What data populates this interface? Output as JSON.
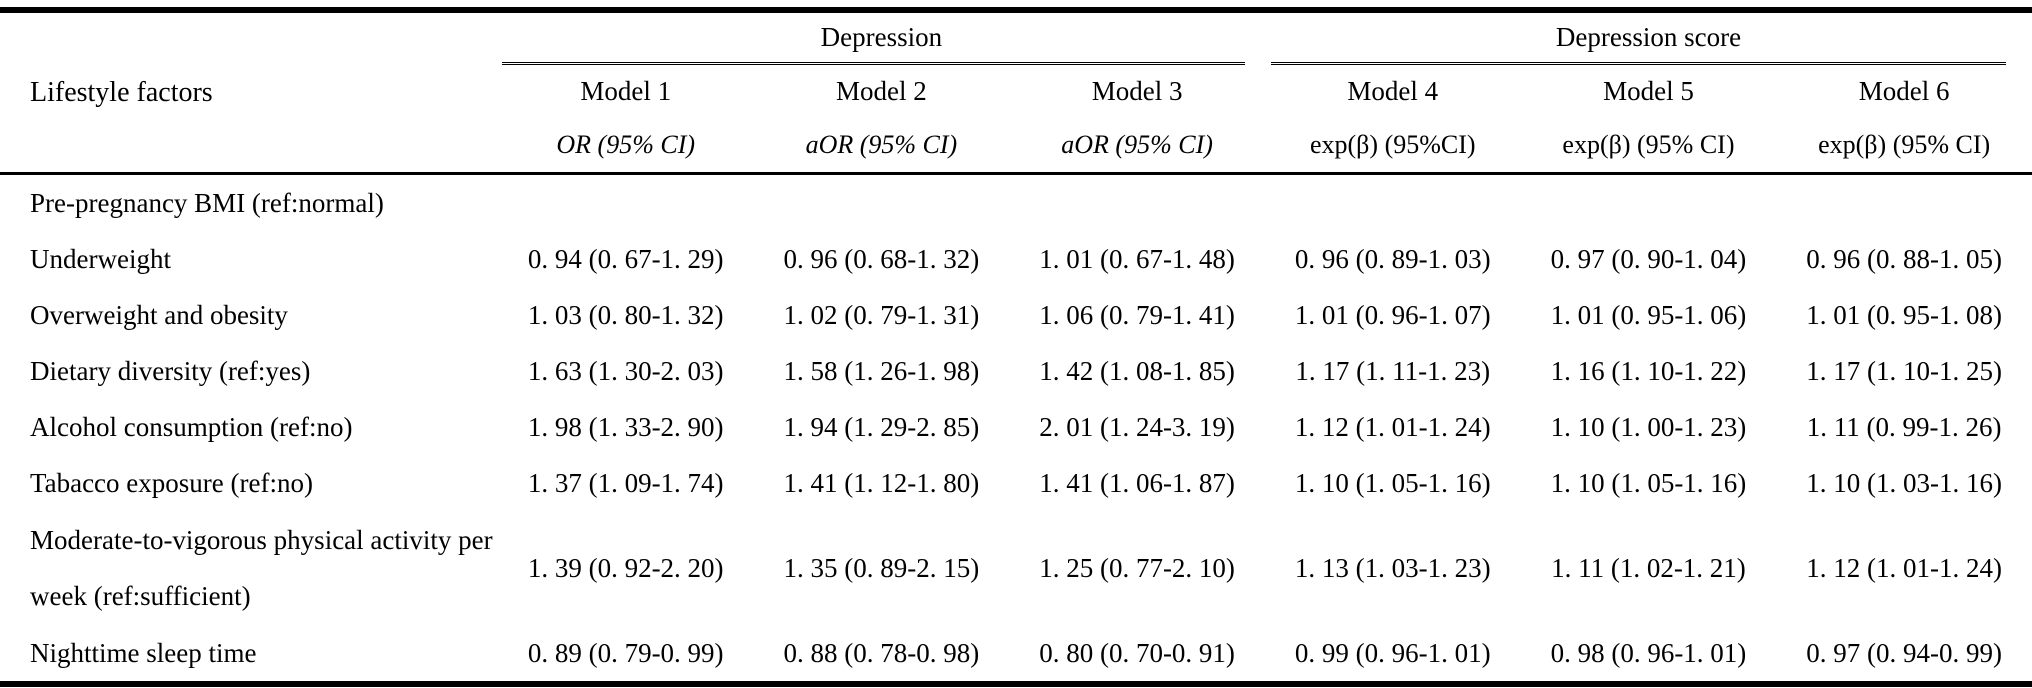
{
  "table": {
    "stub_header": "Lifestyle factors",
    "groups": {
      "depression": "Depression",
      "depression_score": "Depression score"
    },
    "models": [
      "Model 1",
      "Model 2",
      "Model 3",
      "Model 4",
      "Model 5",
      "Model 6"
    ],
    "measures": [
      "OR (95% CI)",
      "aOR (95% CI)",
      "aOR (95% CI)",
      "exp(β) (95%CI)",
      "exp(β) (95% CI)",
      "exp(β) (95% CI)"
    ],
    "rows": [
      {
        "label": "Pre-pregnancy BMI (ref:normal)",
        "values": [
          "",
          "",
          "",
          "",
          "",
          ""
        ]
      },
      {
        "label": "Underweight",
        "values": [
          "0. 94 (0. 67-1. 29)",
          "0. 96 (0. 68-1. 32)",
          "1. 01 (0. 67-1. 48)",
          "0. 96 (0. 89-1. 03)",
          "0. 97 (0. 90-1. 04)",
          "0. 96 (0. 88-1. 05)"
        ]
      },
      {
        "label": "Overweight and obesity",
        "values": [
          "1. 03 (0. 80-1. 32)",
          "1. 02 (0. 79-1. 31)",
          "1. 06 (0. 79-1. 41)",
          "1. 01 (0. 96-1. 07)",
          "1. 01 (0. 95-1. 06)",
          "1. 01 (0. 95-1. 08)"
        ]
      },
      {
        "label": "Dietary diversity (ref:yes)",
        "values": [
          "1. 63 (1. 30-2. 03)",
          "1. 58 (1. 26-1. 98)",
          "1. 42 (1. 08-1. 85)",
          "1. 17 (1. 11-1. 23)",
          "1. 16 (1. 10-1. 22)",
          "1. 17 (1. 10-1. 25)"
        ]
      },
      {
        "label": "Alcohol consumption (ref:no)",
        "values": [
          "1. 98 (1. 33-2. 90)",
          "1. 94 (1. 29-2. 85)",
          "2. 01 (1. 24-3. 19)",
          "1. 12 (1. 01-1. 24)",
          "1. 10 (1. 00-1. 23)",
          "1. 11 (0. 99-1. 26)"
        ]
      },
      {
        "label": "Tabacco exposure (ref:no)",
        "values": [
          "1. 37 (1. 09-1. 74)",
          "1. 41 (1. 12-1. 80)",
          "1. 41 (1. 06-1. 87)",
          "1. 10 (1. 05-1. 16)",
          "1. 10 (1. 05-1. 16)",
          "1. 10 (1. 03-1. 16)"
        ]
      },
      {
        "label": "Moderate-to-vigorous physical activity per week (ref:sufficient)",
        "values": [
          "1. 39 (0. 92-2. 20)",
          "1. 35 (0. 89-2. 15)",
          "1. 25 (0. 77-2. 10)",
          "1. 13 (1. 03-1. 23)",
          "1. 11 (1. 02-1. 21)",
          "1. 12 (1. 01-1. 24)"
        ]
      },
      {
        "label": "Nighttime sleep time",
        "values": [
          "0. 89 (0. 79-0. 99)",
          "0. 88 (0. 78-0. 98)",
          "0. 80 (0. 70-0. 91)",
          "0. 99 (0. 96-1. 01)",
          "0. 98 (0. 96-1. 01)",
          "0. 97 (0. 94-0. 99)"
        ]
      }
    ]
  }
}
